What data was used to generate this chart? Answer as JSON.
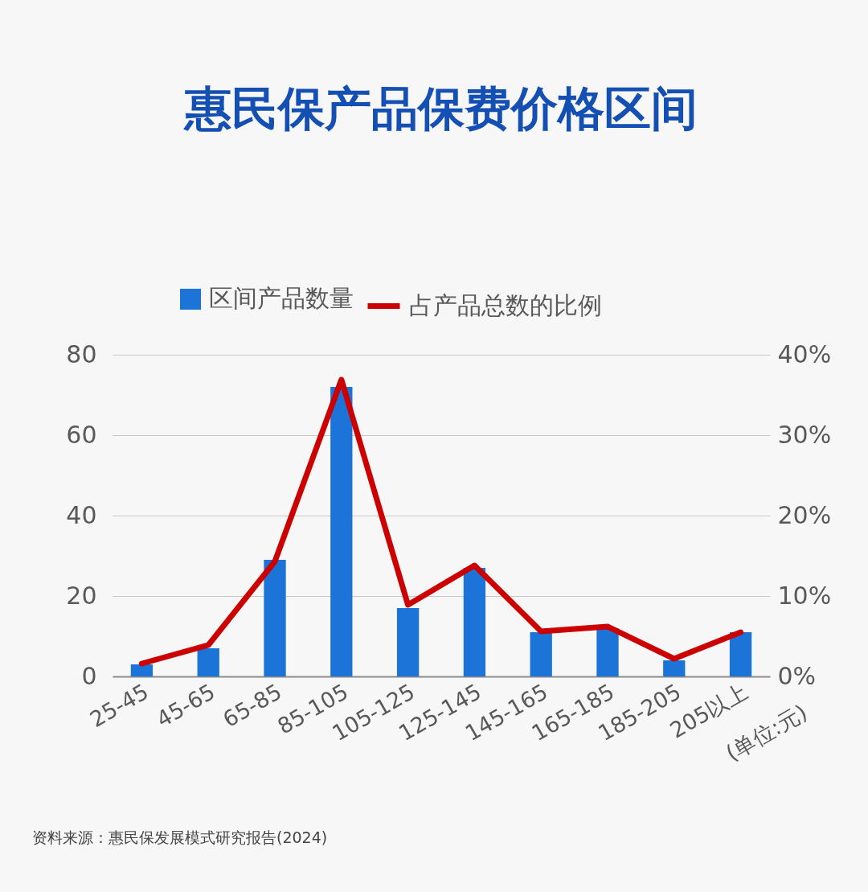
{
  "chart_data": {
    "type": "bar",
    "title": "惠民保产品保费价格区间",
    "categories": [
      "25-45",
      "45-65",
      "65-85",
      "85-105",
      "105-125",
      "125-145",
      "145-165",
      "165-185",
      "185-205",
      "205以上"
    ],
    "series": [
      {
        "name": "区间产品数量",
        "color": "#1c74d8",
        "values": [
          3,
          7,
          29,
          72,
          17,
          27,
          11,
          12,
          4,
          11
        ]
      },
      {
        "name": "占产品总数的比例",
        "type": "line",
        "axis": "y2",
        "color": "#cc0000",
        "values": [
          1.6,
          3.9,
          14.3,
          36.9,
          8.9,
          13.8,
          5.6,
          6.2,
          2.2,
          5.5
        ]
      }
    ],
    "ylim": [
      0,
      80
    ],
    "yticks": [
      0,
      20,
      40,
      60,
      80
    ],
    "y2lim": [
      0,
      40
    ],
    "y2ticks": [
      {
        "value": 0,
        "label": "0%"
      },
      {
        "value": 10,
        "label": "10%"
      },
      {
        "value": 20,
        "label": "20%"
      },
      {
        "value": 30,
        "label": "30%"
      },
      {
        "value": 40,
        "label": "40%"
      }
    ],
    "grid": "y",
    "legend": "top",
    "line_style": "solid",
    "annotations": [
      "(单位:元)",
      "资料来源：惠民保发展模式研究报告(2024)"
    ]
  }
}
